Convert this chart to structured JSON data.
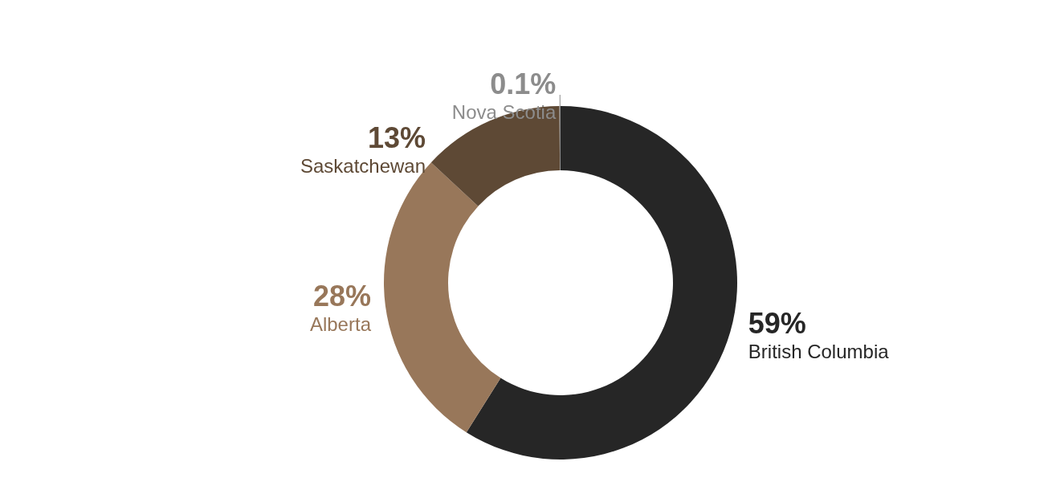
{
  "chart_data": {
    "type": "donut",
    "categories": [
      "British Columbia",
      "Alberta",
      "Saskatchewan",
      "Nova Scotia"
    ],
    "values": [
      59,
      28,
      13,
      0.1
    ],
    "colors": [
      "#262626",
      "#98775a",
      "#5e4935",
      "#8c8c8c"
    ],
    "value_labels": [
      "59%",
      "28%",
      "13%",
      "0.1%"
    ],
    "legend": false
  }
}
